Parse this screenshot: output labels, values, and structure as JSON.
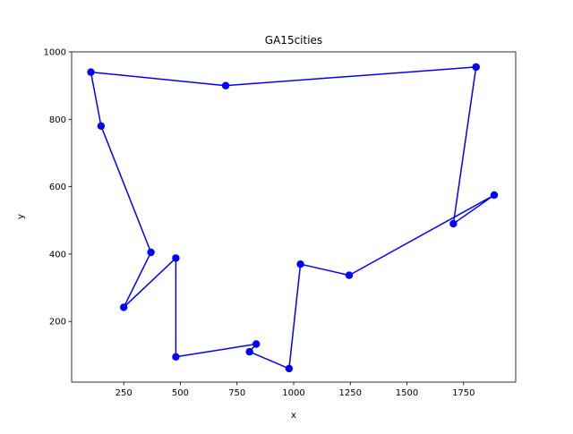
{
  "chart_data": {
    "type": "line",
    "title": "GA15cities",
    "xlabel": "x",
    "ylabel": "y",
    "xlim": [
      20,
      1980
    ],
    "ylim": [
      20,
      1000
    ],
    "xticks": [
      250,
      500,
      750,
      1000,
      1250,
      1500,
      1750
    ],
    "yticks": [
      200,
      400,
      600,
      800,
      1000
    ],
    "xtick_labels": [
      "250",
      "500",
      "750",
      "1000",
      "1250",
      "1500",
      "1750"
    ],
    "ytick_labels": [
      "200",
      "400",
      "600",
      "800",
      "1000"
    ],
    "grid": false,
    "legend": "none",
    "series": [
      {
        "color": "#0000ff",
        "marker": "circle",
        "x": [
          1805,
          700,
          105,
          150,
          370,
          250,
          480,
          480,
          835,
          805,
          980,
          1030,
          1245,
          1885,
          1705,
          1805
        ],
        "y": [
          955,
          900,
          940,
          780,
          405,
          242,
          388,
          95,
          133,
          110,
          60,
          370,
          337,
          575,
          490,
          955
        ]
      }
    ]
  }
}
